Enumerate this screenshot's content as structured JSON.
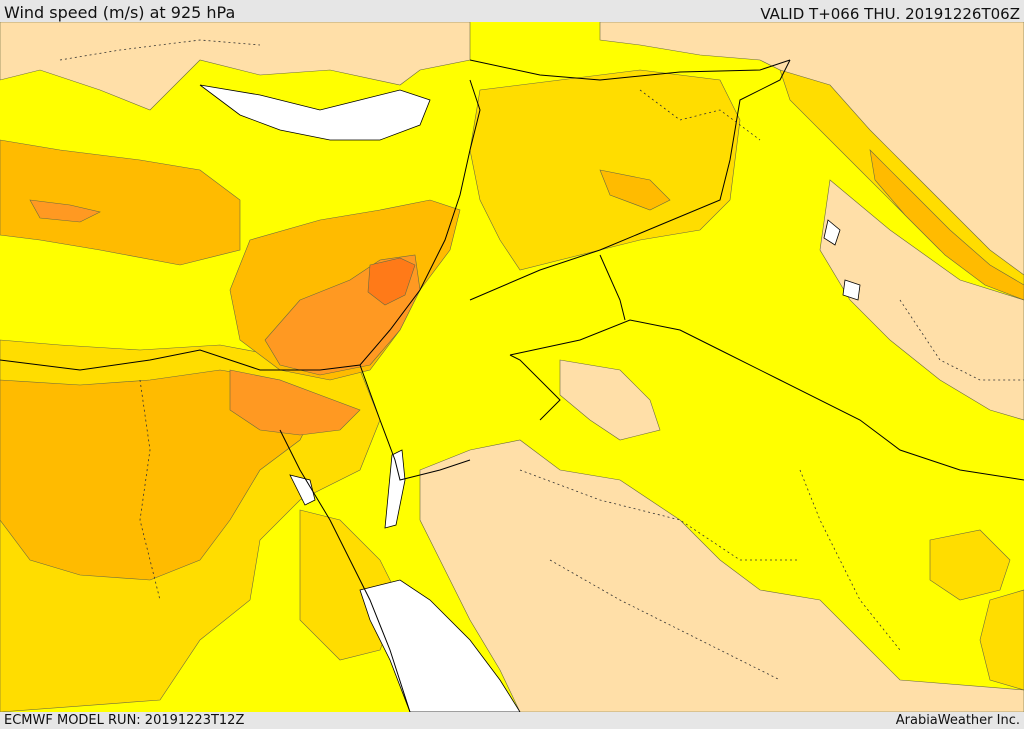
{
  "header": {
    "title": "Wind speed (m/s) at 925 hPa",
    "valid": "VALID T+066 THU. 20191226T06Z"
  },
  "footer": {
    "model_run": "ECMWF MODEL RUN: 20191223T12Z",
    "credit": "ArabiaWeather Inc."
  },
  "colors": {
    "land_pale": "#ffdfa8",
    "yellow": "#ffff00",
    "gold": "#ffdd00",
    "light_orange": "#ffbb00",
    "orange": "#ff9922",
    "dark_orange": "#ff7a18",
    "no_data": "#ffffff",
    "coastline": "#000000"
  }
}
